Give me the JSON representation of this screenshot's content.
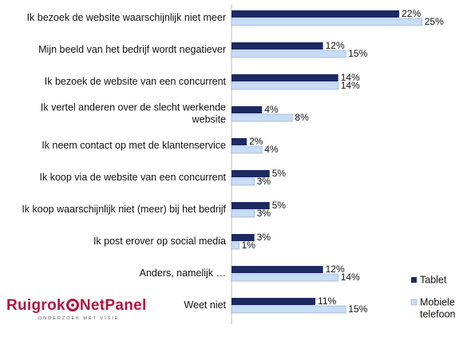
{
  "chart_data": {
    "type": "bar",
    "orientation": "horizontal",
    "categories": [
      [
        "Ik bezoek de website waarschijnlijk niet meer"
      ],
      [
        "Mijn beeld van het bedrijf wordt negatiever"
      ],
      [
        "Ik bezoek de website van een concurrent"
      ],
      [
        "Ik vertel anderen over de slecht werkende",
        "website"
      ],
      [
        "Ik neem contact op met de klantenservice"
      ],
      [
        "Ik koop via de website van een concurrent"
      ],
      [
        "Ik koop waarschijnlijk niet (meer) bij het bedrijf"
      ],
      [
        "Ik post erover op social media"
      ],
      [
        "Anders, namelijk …"
      ],
      [
        "Weet niet"
      ]
    ],
    "series": [
      {
        "name": "Tablet",
        "color": "#1b2a63",
        "values": [
          22,
          12,
          14,
          4,
          2,
          5,
          5,
          3,
          12,
          11
        ],
        "labels": [
          "22%",
          "12%",
          "14%",
          "4%",
          "2%",
          "5%",
          "5%",
          "3%",
          "12%",
          "11%"
        ]
      },
      {
        "name": "Mobiele telefoon",
        "legend_lines": [
          "Mobiele",
          "telefoon"
        ],
        "color": "#c7dcf5",
        "values": [
          25,
          15,
          14,
          8,
          4,
          3,
          3,
          1,
          14,
          15
        ],
        "labels": [
          "25%",
          "15%",
          "14%",
          "8%",
          "4%",
          "3%",
          "3%",
          "1%",
          "14%",
          "15%"
        ]
      }
    ],
    "xlim": [
      0,
      25
    ],
    "grid": false,
    "legend_position": "bottom-right"
  },
  "logo": {
    "name_left": "Ruigrok",
    "name_right": "NetPanel",
    "tagline": "ONDERZOEK MET VISIE"
  }
}
